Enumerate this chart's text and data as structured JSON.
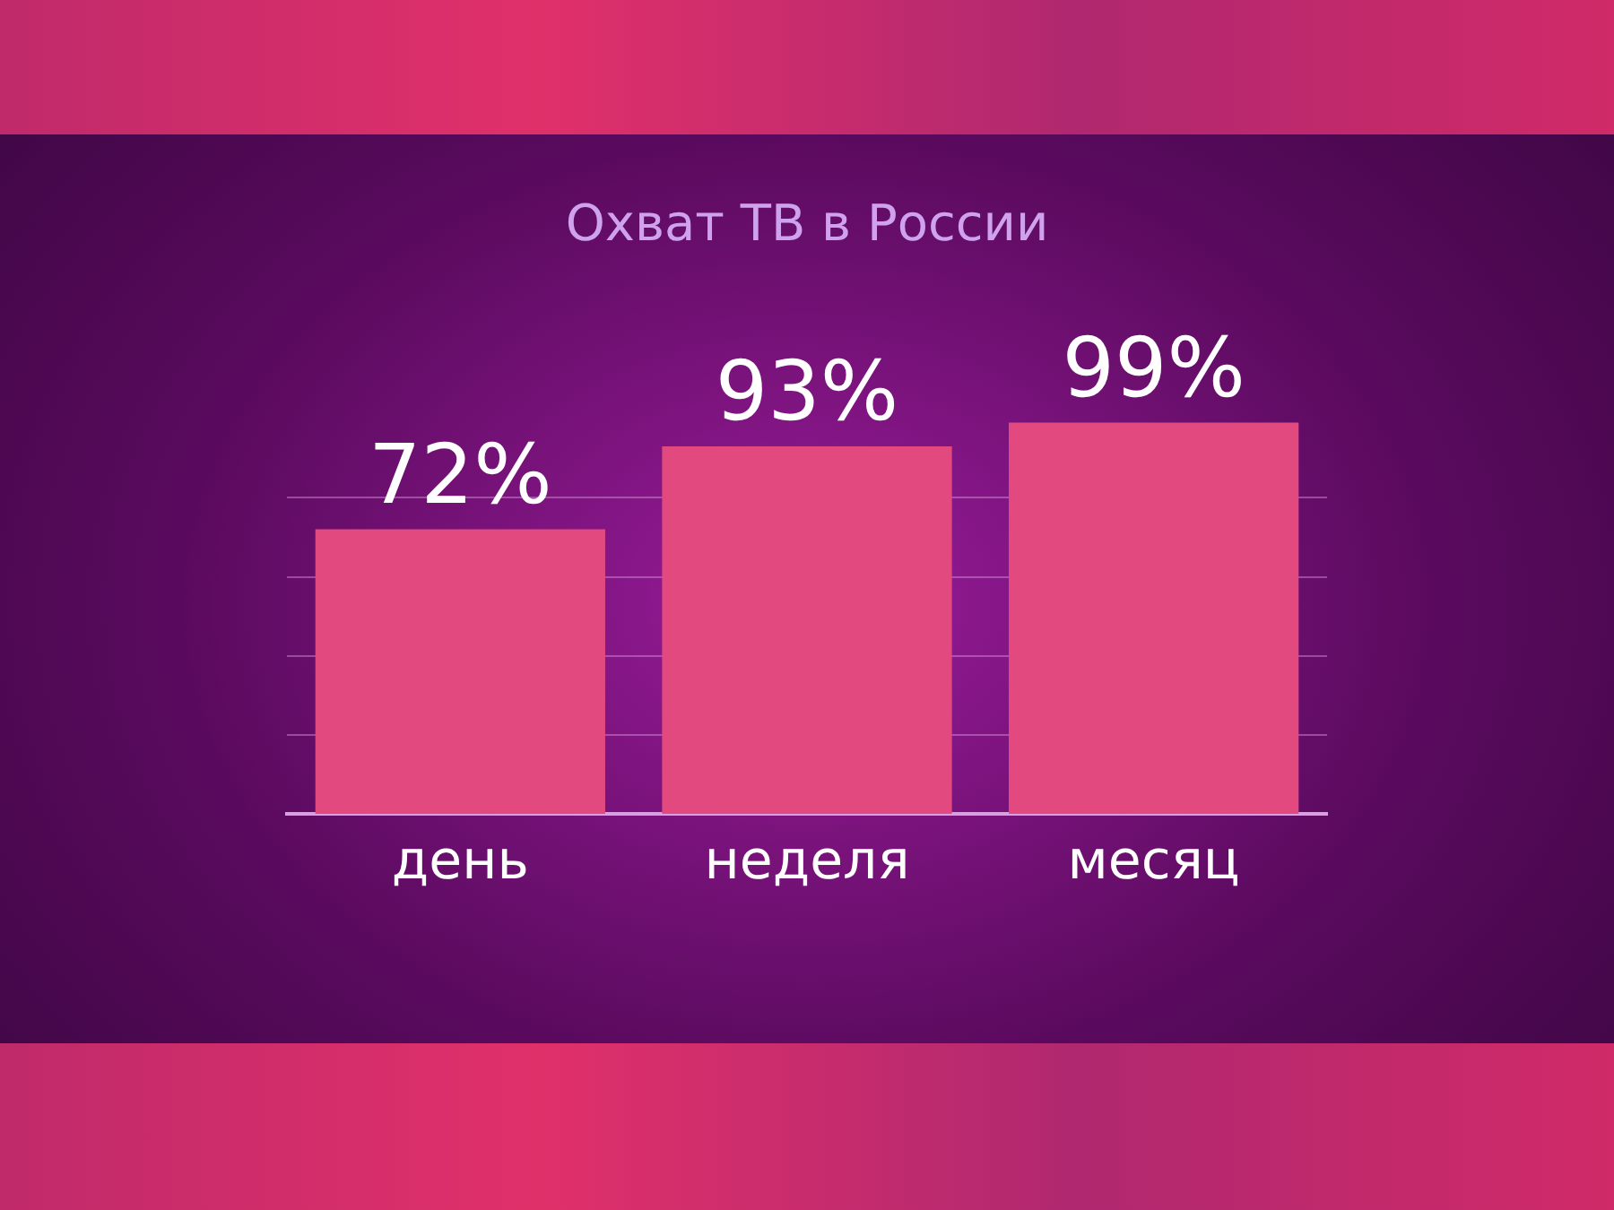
{
  "chart_data": {
    "type": "bar",
    "title": "Охват ТВ в России",
    "categories": [
      "день",
      "неделя",
      "месяц"
    ],
    "values": [
      72,
      93,
      99
    ],
    "value_labels": [
      "72%",
      "93%",
      "99%"
    ],
    "color": "#e24a7f",
    "ylim": [
      0,
      100
    ],
    "yticks": [
      {
        "value": 20,
        "label": null
      },
      {
        "value": 40,
        "label": null
      },
      {
        "value": 60,
        "label": null
      },
      {
        "value": 80,
        "label": null
      }
    ],
    "grid": "y",
    "tick_labels": "x"
  }
}
